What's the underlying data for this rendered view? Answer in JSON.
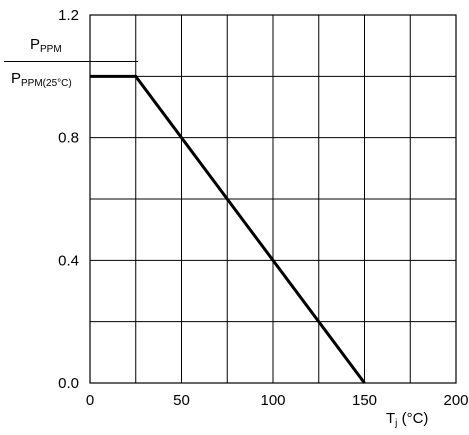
{
  "chart_data": {
    "type": "line",
    "x": [
      0,
      25,
      150
    ],
    "y": [
      1.0,
      1.0,
      0.0
    ],
    "xlim": [
      0,
      200
    ],
    "ylim": [
      0,
      1.2
    ],
    "xticks": [
      0,
      50,
      100,
      150,
      200
    ],
    "xtick_labels": [
      "0",
      "50",
      "100",
      "150",
      "200"
    ],
    "yticks": [
      0,
      0.4,
      0.8,
      1.2
    ],
    "ytick_labels": [
      "0.0",
      "0.4",
      "0.8",
      "1.2"
    ],
    "x_grid_step": 25,
    "y_grid_step": 0.2,
    "grid": true,
    "line_color": "#000000",
    "ylabel": {
      "numerator_main": "P",
      "numerator_sub": "PPM",
      "denominator_main": "P",
      "denominator_sub": "PPM(25°C)"
    },
    "xlabel": {
      "main": "T",
      "sub": "j",
      "unit": " (°C)"
    }
  }
}
